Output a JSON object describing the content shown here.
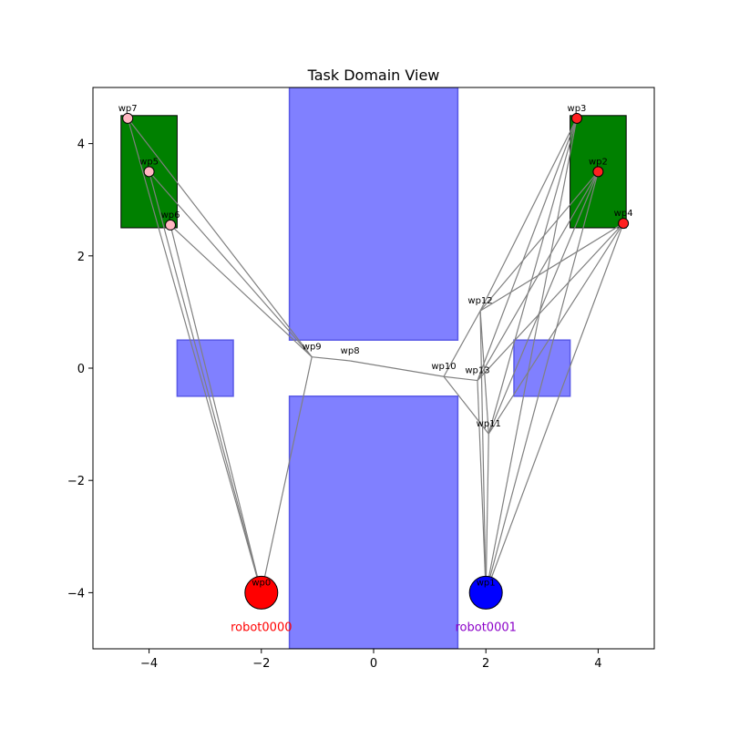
{
  "chart_data": {
    "type": "scatter",
    "title": "Task Domain View",
    "xlabel": "",
    "ylabel": "",
    "xlim": [
      -5,
      5
    ],
    "ylim": [
      -5,
      5
    ],
    "xticks": [
      -4,
      -2,
      0,
      2,
      4
    ],
    "yticks": [
      -4,
      -2,
      0,
      2,
      4
    ],
    "xtick_labels": [
      "−4",
      "−2",
      "0",
      "2",
      "4"
    ],
    "ytick_labels": [
      "−4",
      "−2",
      "0",
      "2",
      "4"
    ],
    "grid": false,
    "colors": {
      "obstacle": "#8080ff",
      "obstacle_edge": "#5959e6",
      "location": "#008000",
      "edge": "#808080",
      "wp_left": "#ffb6c1",
      "wp_right": "#ff2020",
      "robot0000": "#ff0000",
      "robot0001": "#0000ff",
      "robot0001_label": "#8b00c8"
    },
    "obstacles": [
      {
        "name": "obstacle-top-center",
        "x0": -1.5,
        "y0": 0.5,
        "x1": 1.5,
        "y1": 5.0
      },
      {
        "name": "obstacle-bottom-center",
        "x0": -1.5,
        "y0": -5.0,
        "x1": 1.5,
        "y1": -0.5
      },
      {
        "name": "obstacle-left-small",
        "x0": -3.5,
        "y0": -0.5,
        "x1": -2.5,
        "y1": 0.5
      },
      {
        "name": "obstacle-right-small",
        "x0": 2.5,
        "y0": -0.5,
        "x1": 3.5,
        "y1": 0.5
      }
    ],
    "locations": [
      {
        "name": "location-left",
        "x0": -4.5,
        "y0": 2.5,
        "x1": -3.5,
        "y1": 4.5
      },
      {
        "name": "location-right",
        "x0": 3.5,
        "y0": 2.5,
        "x1": 4.5,
        "y1": 4.5
      }
    ],
    "waypoints": [
      {
        "id": "wp0",
        "x": -2.0,
        "y": -4.0,
        "kind": "robot"
      },
      {
        "id": "wp1",
        "x": 2.0,
        "y": -4.0,
        "kind": "robot"
      },
      {
        "id": "wp2",
        "x": 4.0,
        "y": 3.5,
        "kind": "right"
      },
      {
        "id": "wp3",
        "x": 3.62,
        "y": 4.45,
        "kind": "right"
      },
      {
        "id": "wp4",
        "x": 4.45,
        "y": 2.58,
        "kind": "right"
      },
      {
        "id": "wp5",
        "x": -4.0,
        "y": 3.5,
        "kind": "left"
      },
      {
        "id": "wp6",
        "x": -3.62,
        "y": 2.55,
        "kind": "left"
      },
      {
        "id": "wp7",
        "x": -4.38,
        "y": 4.45,
        "kind": "left"
      },
      {
        "id": "wp8",
        "x": -0.42,
        "y": 0.13,
        "kind": "free"
      },
      {
        "id": "wp9",
        "x": -1.1,
        "y": 0.2,
        "kind": "free"
      },
      {
        "id": "wp10",
        "x": 1.25,
        "y": -0.15,
        "kind": "free"
      },
      {
        "id": "wp11",
        "x": 2.05,
        "y": -1.17,
        "kind": "free"
      },
      {
        "id": "wp12",
        "x": 1.9,
        "y": 1.02,
        "kind": "free"
      },
      {
        "id": "wp13",
        "x": 1.85,
        "y": -0.22,
        "kind": "free"
      }
    ],
    "edges": [
      [
        "wp0",
        "wp5"
      ],
      [
        "wp0",
        "wp6"
      ],
      [
        "wp0",
        "wp7"
      ],
      [
        "wp0",
        "wp9"
      ],
      [
        "wp9",
        "wp5"
      ],
      [
        "wp9",
        "wp6"
      ],
      [
        "wp9",
        "wp7"
      ],
      [
        "wp9",
        "wp8"
      ],
      [
        "wp8",
        "wp10"
      ],
      [
        "wp10",
        "wp12"
      ],
      [
        "wp10",
        "wp13"
      ],
      [
        "wp10",
        "wp11"
      ],
      [
        "wp1",
        "wp12"
      ],
      [
        "wp1",
        "wp13"
      ],
      [
        "wp1",
        "wp11"
      ],
      [
        "wp1",
        "wp2"
      ],
      [
        "wp1",
        "wp3"
      ],
      [
        "wp1",
        "wp4"
      ],
      [
        "wp12",
        "wp2"
      ],
      [
        "wp12",
        "wp3"
      ],
      [
        "wp12",
        "wp4"
      ],
      [
        "wp13",
        "wp2"
      ],
      [
        "wp13",
        "wp3"
      ],
      [
        "wp13",
        "wp4"
      ],
      [
        "wp11",
        "wp2"
      ],
      [
        "wp11",
        "wp3"
      ],
      [
        "wp11",
        "wp4"
      ],
      [
        "wp12",
        "wp11"
      ]
    ],
    "robots": [
      {
        "name": "robot0000",
        "x": -2.0,
        "y": -4.0,
        "label_y": -4.6,
        "color_key": "robot0000",
        "label_color_key": "robot0000"
      },
      {
        "name": "robot0001",
        "x": 2.0,
        "y": -4.0,
        "label_y": -4.6,
        "color_key": "robot0001",
        "label_color_key": "robot0001_label"
      }
    ]
  }
}
